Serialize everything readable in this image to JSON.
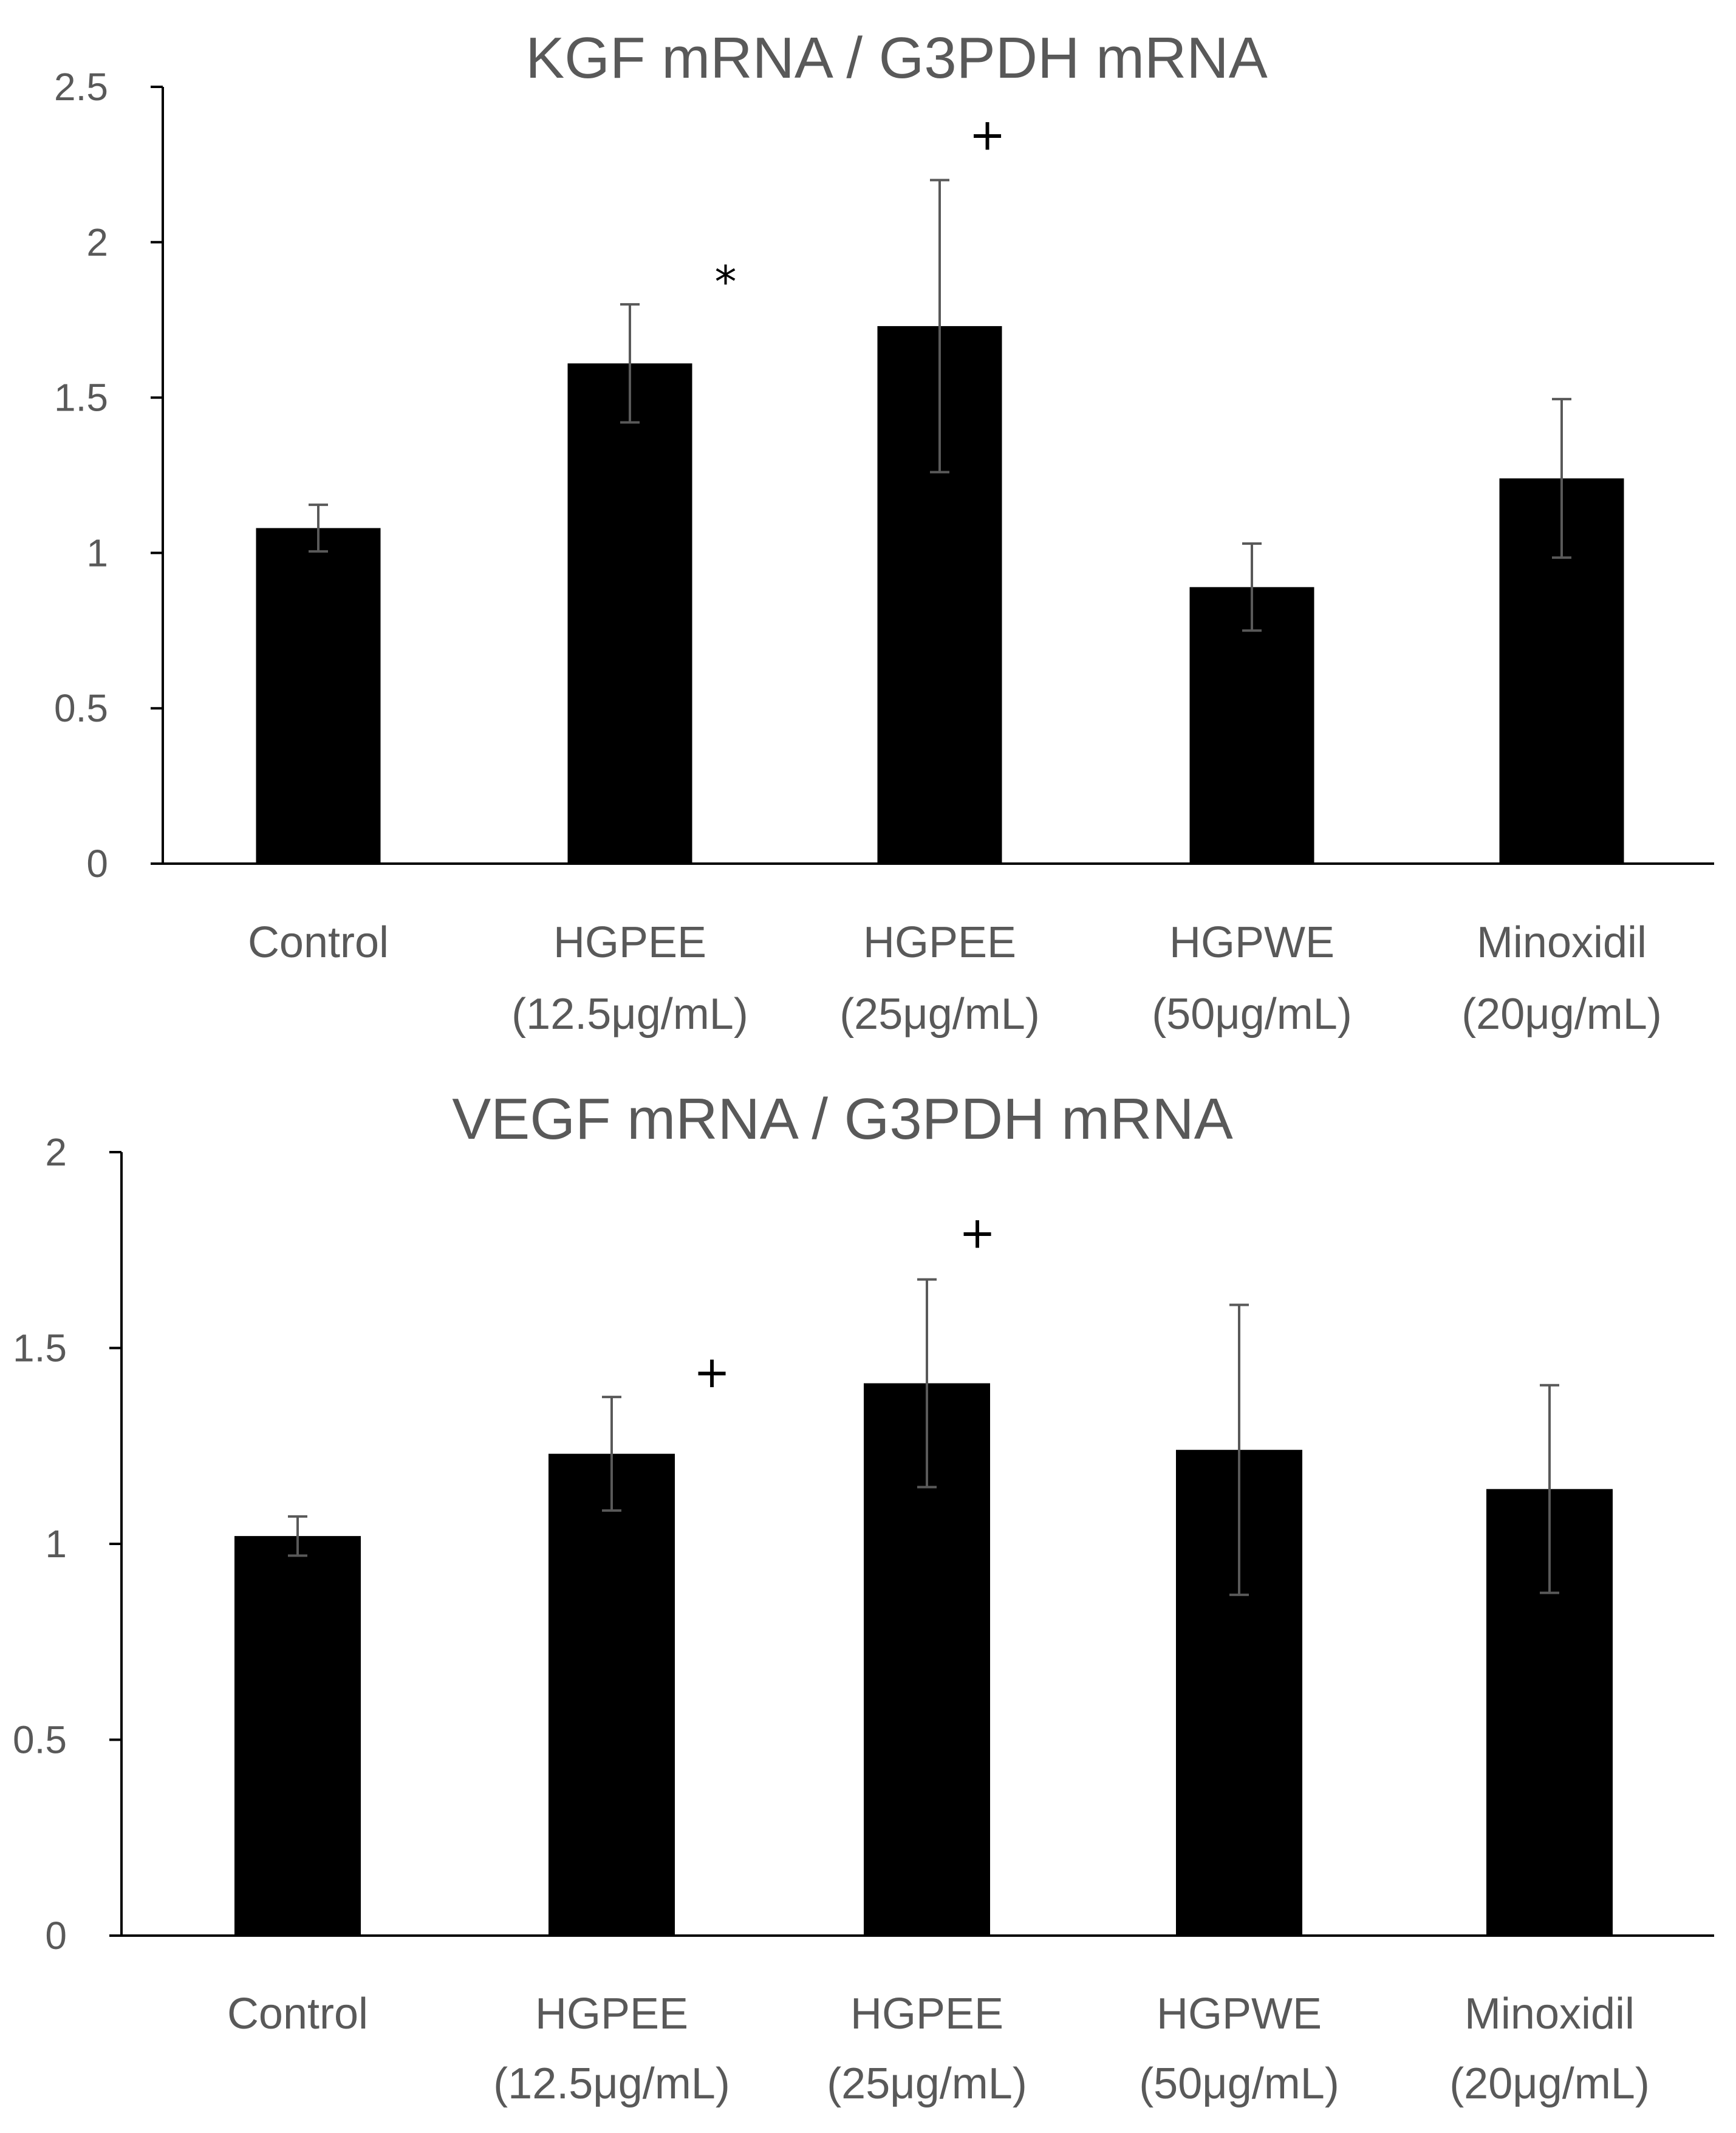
{
  "chart_data": [
    {
      "type": "bar",
      "title": "KGF mRNA / G3PDH mRNA",
      "xlabel": "",
      "ylabel": "",
      "ylim": [
        0,
        2.5
      ],
      "yticks": [
        0,
        0.5,
        1,
        1.5,
        2,
        2.5
      ],
      "ytick_labels": [
        "0",
        "0.5",
        "1",
        "1.5",
        "2",
        "2.5"
      ],
      "grid": false,
      "categories": [
        [
          "Control"
        ],
        [
          "HGPEE",
          "(12.5μg/mL)"
        ],
        [
          "HGPEE",
          "(25μg/mL)"
        ],
        [
          "HGPWE",
          "(50μg/mL)"
        ],
        [
          "Minoxidil",
          "(20μg/mL)"
        ]
      ],
      "values": [
        1.08,
        1.61,
        1.73,
        0.89,
        1.24
      ],
      "error": [
        0.075,
        0.19,
        0.47,
        0.14,
        0.255
      ],
      "annotations": [
        "",
        "*",
        "+",
        "",
        ""
      ],
      "bar_color": "#000000",
      "error_color": "#595959"
    },
    {
      "type": "bar",
      "title": "VEGF mRNA / G3PDH mRNA",
      "xlabel": "",
      "ylabel": "",
      "ylim": [
        0,
        2
      ],
      "yticks": [
        0,
        0.5,
        1,
        1.5,
        2
      ],
      "ytick_labels": [
        "0",
        "0.5",
        "1",
        "1.5",
        "2"
      ],
      "grid": false,
      "categories": [
        [
          "Control"
        ],
        [
          "HGPEE",
          "(12.5μg/mL)"
        ],
        [
          "HGPEE",
          "(25μg/mL)"
        ],
        [
          "HGPWE",
          "(50μg/mL)"
        ],
        [
          "Minoxidil",
          "(20μg/mL)"
        ]
      ],
      "values": [
        1.02,
        1.23,
        1.41,
        1.24,
        1.14
      ],
      "error": [
        0.05,
        0.145,
        0.265,
        0.37,
        0.265
      ],
      "annotations": [
        "",
        "+",
        "+",
        "",
        ""
      ],
      "bar_color": "#000000",
      "error_color": "#595959"
    }
  ]
}
